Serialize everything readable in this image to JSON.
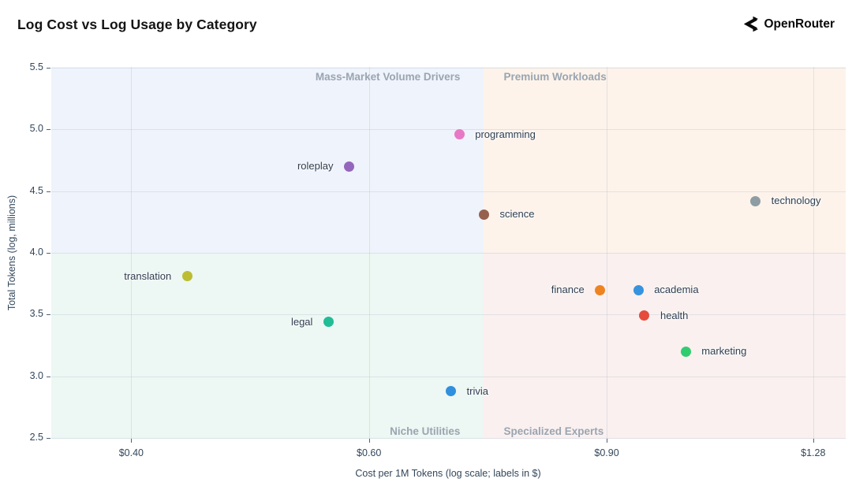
{
  "header": {
    "title": "Log Cost vs Log Usage by Category",
    "brand": "OpenRouter"
  },
  "chart_data": {
    "type": "scatter",
    "title": "Log Cost vs Log Usage by Category",
    "xlabel": "Cost per 1M Tokens (log scale; labels in $)",
    "ylabel": "Total Tokens (log, millions)",
    "x_scale": "log",
    "y_scale": "linear",
    "grid": true,
    "x_range": [
      0.349,
      1.353
    ],
    "y_range": [
      2.494,
      5.506
    ],
    "x_ticks": [
      {
        "label": "$0.40",
        "value": 0.4
      },
      {
        "label": "$0.60",
        "value": 0.6
      },
      {
        "label": "$0.90",
        "value": 0.9
      },
      {
        "label": "$1.28",
        "value": 1.28
      }
    ],
    "y_ticks": [
      {
        "label": "2.5",
        "value": 2.5
      },
      {
        "label": "3.0",
        "value": 3.0
      },
      {
        "label": "3.5",
        "value": 3.5
      },
      {
        "label": "4.0",
        "value": 4.0
      },
      {
        "label": "4.5",
        "value": 4.5
      },
      {
        "label": "5.0",
        "value": 5.0
      },
      {
        "label": "5.5",
        "value": 5.5
      }
    ],
    "quadrant_boundary": {
      "cost": 0.73,
      "log_tokens": 4.0
    },
    "quadrant_label_color": "#9aa5b1",
    "quadrants": [
      {
        "name": "Mass-Market Volume Drivers",
        "position": "top-left",
        "color": "#eff3fb"
      },
      {
        "name": "Premium Workloads",
        "position": "top-right",
        "color": "#fdf3ea"
      },
      {
        "name": "Niche Utilities",
        "position": "bottom-left",
        "color": "#edf7f3"
      },
      {
        "name": "Specialized Experts",
        "position": "bottom-right",
        "color": "#faf0ef"
      }
    ],
    "points": [
      {
        "label": "programming",
        "cost": 0.7,
        "log_tokens": 4.96,
        "color": "#e878c6",
        "label_side": "right"
      },
      {
        "label": "roleplay",
        "cost": 0.58,
        "log_tokens": 4.7,
        "color": "#9467bd",
        "label_side": "left"
      },
      {
        "label": "technology",
        "cost": 1.16,
        "log_tokens": 4.42,
        "color": "#8d9da3",
        "label_side": "right"
      },
      {
        "label": "science",
        "cost": 0.73,
        "log_tokens": 4.31,
        "color": "#96604f",
        "label_side": "right"
      },
      {
        "label": "translation",
        "cost": 0.44,
        "log_tokens": 3.81,
        "color": "#bcbd33",
        "label_side": "left"
      },
      {
        "label": "finance",
        "cost": 0.89,
        "log_tokens": 3.7,
        "color": "#ee8322",
        "label_side": "left"
      },
      {
        "label": "academia",
        "cost": 0.95,
        "log_tokens": 3.7,
        "color": "#3793dd",
        "label_side": "right"
      },
      {
        "label": "health",
        "cost": 0.96,
        "log_tokens": 3.49,
        "color": "#e54c3c",
        "label_side": "right"
      },
      {
        "label": "legal",
        "cost": 0.56,
        "log_tokens": 3.44,
        "color": "#20bd96",
        "label_side": "left"
      },
      {
        "label": "marketing",
        "cost": 1.03,
        "log_tokens": 3.2,
        "color": "#32cc70",
        "label_side": "right"
      },
      {
        "label": "trivia",
        "cost": 0.69,
        "log_tokens": 2.88,
        "color": "#3090dd",
        "label_side": "right"
      }
    ]
  }
}
